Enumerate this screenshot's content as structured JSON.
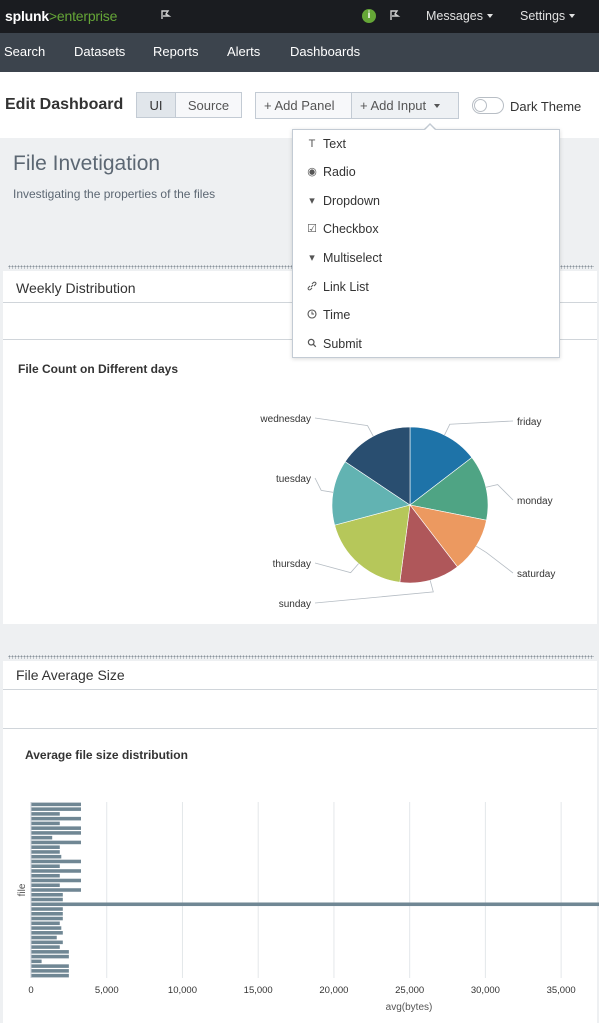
{
  "topbar": {
    "logo_brand": "splunk",
    "logo_gt": ">",
    "logo_product": "enterprise",
    "activity_icon": "activity-icon",
    "messages_label": "Messages",
    "settings_label": "Settings",
    "info_badge": "i"
  },
  "nav": {
    "items": [
      "Search",
      "Datasets",
      "Reports",
      "Alerts",
      "Dashboards"
    ]
  },
  "editbar": {
    "title": "Edit Dashboard",
    "ui_label": "UI",
    "source_label": "Source",
    "add_panel_label": "+ Add Panel",
    "add_input_label": "+ Add Input",
    "dark_theme_label": "Dark Theme"
  },
  "add_input_menu": {
    "items": [
      {
        "label": "Text",
        "icon": "text-icon",
        "glyph": "T"
      },
      {
        "label": "Radio",
        "icon": "radio-icon",
        "glyph": "◉"
      },
      {
        "label": "Dropdown",
        "icon": "dropdown-icon",
        "glyph": "▾"
      },
      {
        "label": "Checkbox",
        "icon": "checkbox-icon",
        "glyph": "☑"
      },
      {
        "label": "Multiselect",
        "icon": "multiselect-icon",
        "glyph": "▾"
      },
      {
        "label": "Link List",
        "icon": "link-icon",
        "glyph": "🔗"
      },
      {
        "label": "Time",
        "icon": "clock-icon",
        "glyph": "◷"
      },
      {
        "label": "Submit",
        "icon": "search-icon",
        "glyph": "⌕"
      }
    ]
  },
  "dashboard": {
    "title": "File Invetigation",
    "description": "Investigating the properties of the files"
  },
  "panels": {
    "weekly": {
      "title": "Weekly Distribution",
      "viz_title": "File Count on Different days"
    },
    "average": {
      "title": "File Average Size",
      "viz_title": "Average file size distribution"
    }
  },
  "chart_data": [
    {
      "type": "pie",
      "title": "File Count on Different days",
      "categories": [
        "friday",
        "monday",
        "saturday",
        "sunday",
        "thursday",
        "tuesday",
        "wednesday"
      ],
      "values": [
        14,
        13,
        11,
        12,
        18,
        13,
        15
      ],
      "colors": [
        "#1e73a8",
        "#4fa484",
        "#ec9960",
        "#af575a",
        "#b6c75a",
        "#62b3b2",
        "#294e70"
      ]
    },
    {
      "type": "bar",
      "title": "Average file size distribution",
      "orientation": "horizontal",
      "xlabel": "avg(bytes)",
      "ylabel": "file",
      "xlim": [
        0,
        37500
      ],
      "xticks": [
        0,
        5000,
        10000,
        15000,
        20000,
        25000,
        30000,
        35000
      ],
      "xtick_labels": [
        "0",
        "5,000",
        "10,000",
        "15,000",
        "20,000",
        "25,000",
        "30,000",
        "35,000"
      ],
      "values": [
        3300,
        3300,
        1900,
        3300,
        1900,
        3300,
        3300,
        1400,
        3300,
        1900,
        1900,
        2000,
        3300,
        1900,
        3300,
        1900,
        3300,
        1900,
        3300,
        2100,
        2100,
        40000,
        2100,
        2100,
        2100,
        1900,
        2000,
        2100,
        1700,
        2100,
        1900,
        2500,
        2500,
        700,
        2500,
        2500,
        2500
      ],
      "bar_color": "#708794"
    }
  ]
}
